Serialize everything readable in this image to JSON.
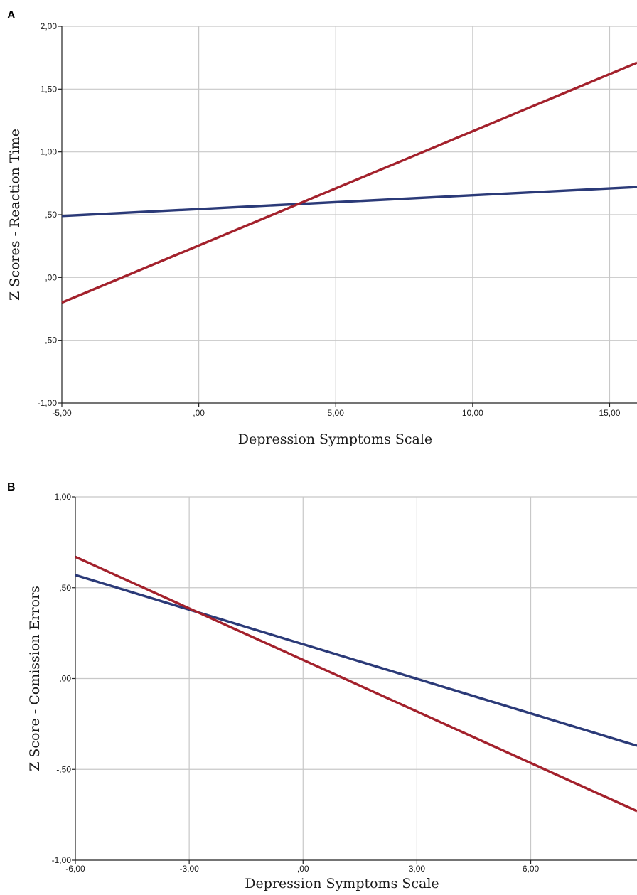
{
  "chart_data": [
    {
      "panel_label": "A",
      "type": "line",
      "xlabel": "Depression Symptoms Scale",
      "ylabel": "Z Scores - Reaction Time",
      "xlim": [
        -5,
        16
      ],
      "ylim": [
        -1,
        2
      ],
      "xticks": [
        -5,
        0,
        5,
        10,
        15
      ],
      "xtick_labels": [
        "-5,00",
        ",00",
        "5,00",
        "10,00",
        "15,00"
      ],
      "yticks": [
        -1,
        -0.5,
        0,
        0.5,
        1,
        1.5,
        2
      ],
      "ytick_labels": [
        "-1,00",
        "-,50",
        ",00",
        ",50",
        "1,00",
        "1,50",
        "2,00"
      ],
      "grid": true,
      "series": [
        {
          "color": "#2b3a78",
          "x": [
            -5,
            16
          ],
          "y": [
            0.49,
            0.72
          ]
        },
        {
          "color": "#a3212c",
          "x": [
            -5,
            16
          ],
          "y": [
            -0.2,
            1.71
          ]
        }
      ]
    },
    {
      "panel_label": "B",
      "type": "line",
      "xlabel": "Depression Symptoms Scale",
      "ylabel": "Z Score - Comission Errors",
      "xlim": [
        -6,
        8.8
      ],
      "ylim": [
        -1,
        1
      ],
      "xticks": [
        -6,
        -3,
        0,
        3,
        6
      ],
      "xtick_labels": [
        "-6,00",
        "-3,00",
        ",00",
        "3,00",
        "6,00"
      ],
      "yticks": [
        -1,
        -0.5,
        0,
        0.5,
        1
      ],
      "ytick_labels": [
        "-1,00",
        "-,50",
        ",00",
        ",50",
        "1,00"
      ],
      "grid": true,
      "series": [
        {
          "color": "#2b3a78",
          "x": [
            -6,
            8.8
          ],
          "y": [
            0.57,
            -0.37
          ]
        },
        {
          "color": "#a3212c",
          "x": [
            -6,
            8.8
          ],
          "y": [
            0.67,
            -0.73
          ]
        }
      ]
    }
  ]
}
